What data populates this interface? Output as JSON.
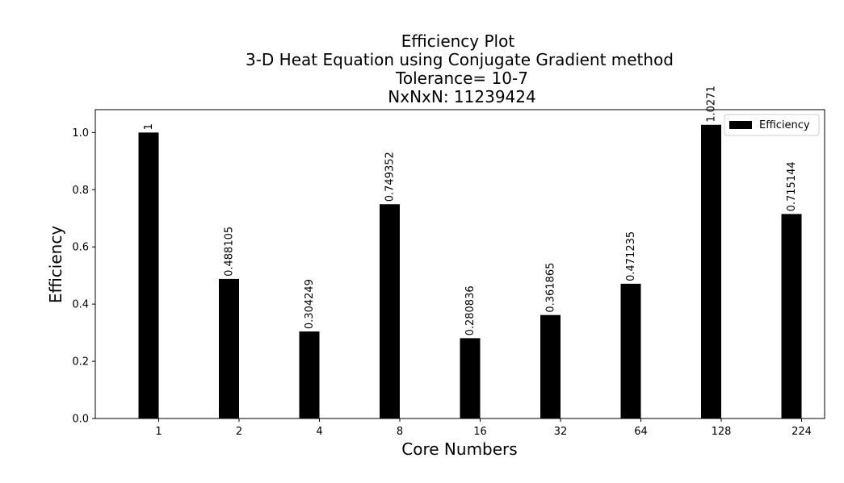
{
  "chart_data": {
    "type": "bar",
    "title_lines": [
      "Efficiency Plot",
      "3-D Heat Equation using Conjugate Gradient method",
      "Tolerance= 10-7",
      "NxNxN: 11239424"
    ],
    "xlabel": "Core Numbers",
    "ylabel": "Efficiency",
    "categories": [
      "1",
      "2",
      "4",
      "8",
      "16",
      "32",
      "64",
      "128",
      "224"
    ],
    "series": [
      {
        "name": "Efficiency",
        "color": "#000000",
        "values": [
          1,
          0.488105,
          0.304249,
          0.749352,
          0.280836,
          0.361865,
          0.471235,
          1.0271,
          0.715144
        ],
        "labels": [
          "1",
          "0.488105",
          "0.304249",
          "0.749352",
          "0.280836",
          "0.361865",
          "0.471235",
          "1.0271",
          "0.715144"
        ]
      }
    ],
    "y_ticks": [
      "0.0",
      "0.2",
      "0.4",
      "0.6",
      "0.8",
      "1.0"
    ],
    "y_tick_values": [
      0,
      0.2,
      0.4,
      0.6,
      0.8,
      1.0
    ],
    "ylim": [
      0,
      1.08
    ],
    "grid": false,
    "legend_position": "top-right"
  }
}
